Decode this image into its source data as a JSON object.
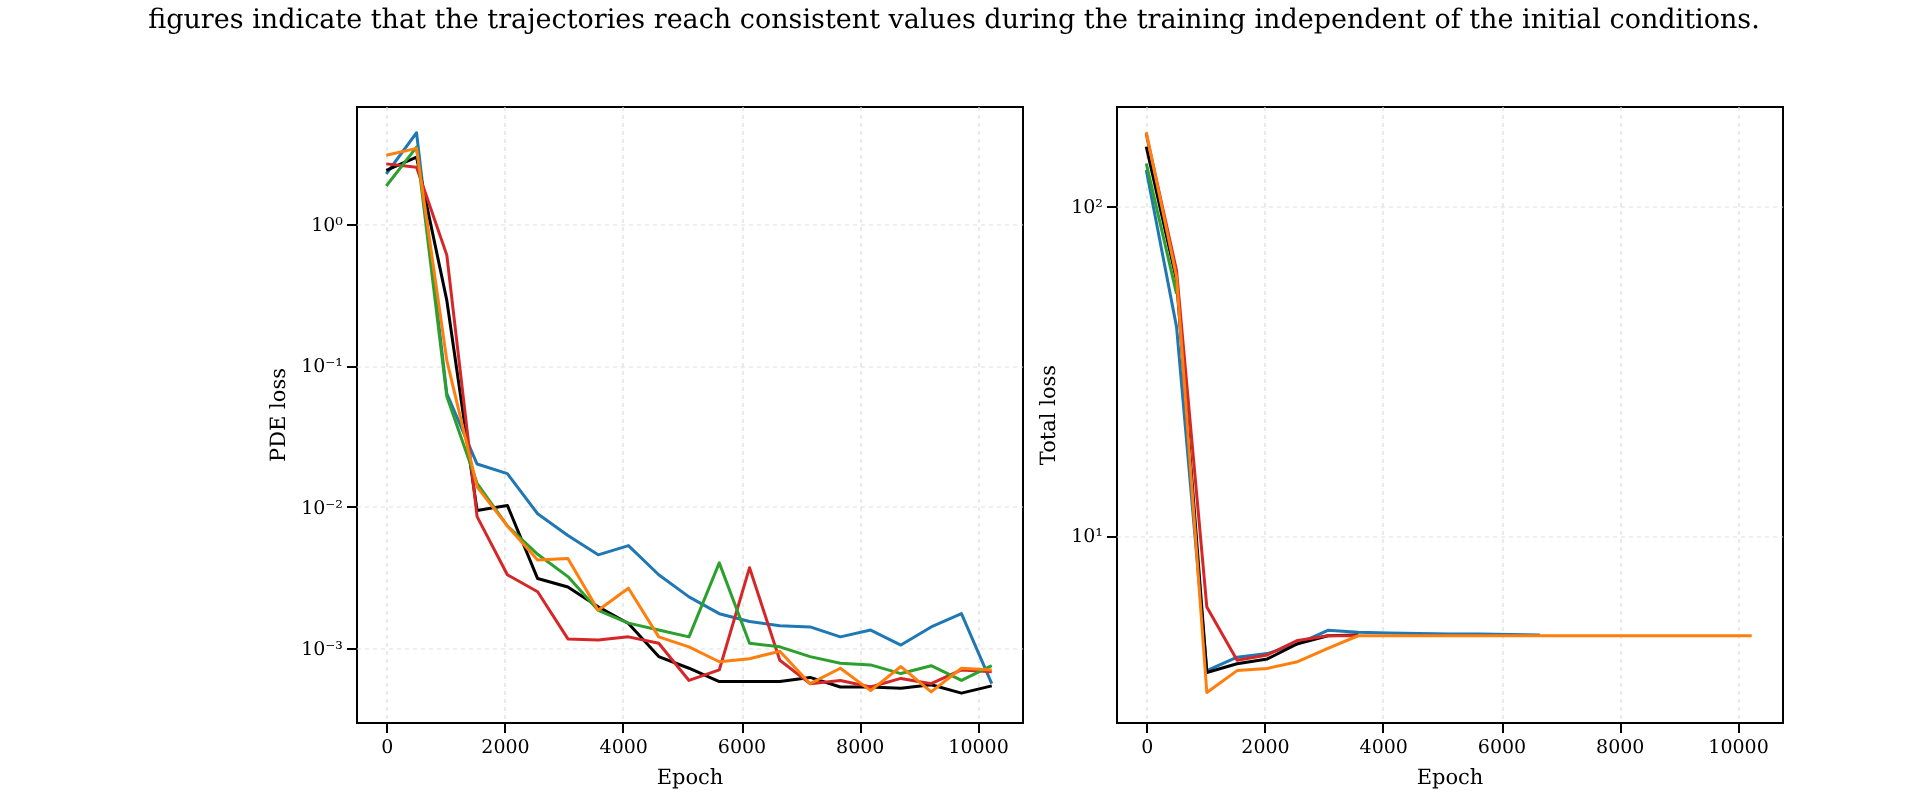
{
  "chart_data": [
    {
      "type": "line",
      "xlabel": "Epoch",
      "ylabel": "PDE loss",
      "log": "y",
      "grid": true,
      "annotations": [
        "figures indicate that the trajectories reach consistent values during the training independent of the initial conditions."
      ],
      "x": [
        0,
        512,
        1024,
        1536,
        2048,
        2560,
        3072,
        3584,
        4096,
        4608,
        5120,
        5632,
        6144,
        6656,
        7168,
        7680,
        8192,
        8704,
        9216,
        9728,
        10240
      ],
      "xlim": [
        -512,
        10752
      ],
      "xticks": [
        0,
        2000,
        4000,
        6000,
        8000,
        10000
      ],
      "ylim": [
        0.0003,
        6.8
      ],
      "yticks": [
        {
          "value": 0.001,
          "label": "10⁻³"
        },
        {
          "value": 0.01,
          "label": "10⁻²"
        },
        {
          "value": 0.1,
          "label": "10⁻¹"
        },
        {
          "value": 1,
          "label": "10⁰"
        }
      ],
      "series": [
        {
          "color": "#1f77b4",
          "values": [
            2.25,
            4.4,
            0.063,
            0.02,
            0.0171,
            0.0089,
            0.00625,
            0.00456,
            0.0053,
            0.0033,
            0.0023,
            0.00175,
            0.00154,
            0.00144,
            0.00141,
            0.0012,
            0.00134,
            0.00105,
            0.00141,
            0.00175,
            0.00056
          ]
        },
        {
          "color": "#000000",
          "values": [
            2.38,
            2.96,
            0.287,
            0.0094,
            0.0102,
            0.0031,
            0.0027,
            0.00196,
            0.00149,
            0.00087,
            0.00072,
            0.00058,
            0.00058,
            0.00058,
            0.00062,
            0.00053,
            0.00053,
            0.00052,
            0.00055,
            0.00048,
            0.00054
          ]
        },
        {
          "color": "#d62728",
          "values": [
            2.65,
            2.51,
            0.6,
            0.0085,
            0.0033,
            0.0025,
            0.00116,
            0.00114,
            0.0012,
            0.00108,
            0.00059,
            0.0007,
            0.0037,
            0.00082,
            0.00056,
            0.00059,
            0.00053,
            0.00061,
            0.00056,
            0.0007,
            0.00068
          ]
        },
        {
          "color": "#2ca02c",
          "values": [
            1.85,
            3.48,
            0.06,
            0.0146,
            0.0073,
            0.0046,
            0.0032,
            0.00185,
            0.0015,
            0.00134,
            0.0012,
            0.004,
            0.00108,
            0.00102,
            0.00087,
            0.00078,
            0.00076,
            0.00066,
            0.00075,
            0.00059,
            0.00075
          ]
        },
        {
          "color": "#ff7f0e",
          "values": [
            3.05,
            3.41,
            0.108,
            0.0138,
            0.0073,
            0.0042,
            0.0043,
            0.00185,
            0.00265,
            0.0012,
            0.00102,
            0.0008,
            0.00084,
            0.00095,
            0.00056,
            0.00072,
            0.0005,
            0.00074,
            0.00049,
            0.00072,
            0.0007
          ]
        }
      ]
    },
    {
      "type": "line",
      "xlabel": "Epoch",
      "ylabel": "Total loss",
      "log": "y",
      "grid": true,
      "x": [
        0,
        512,
        1024,
        1536,
        2048,
        2560,
        3072,
        3584,
        4096,
        4608,
        5120,
        5632,
        6144,
        6656,
        7168,
        7680,
        8192,
        8704,
        9216,
        9728,
        10240
      ],
      "xlim": [
        -512,
        10752
      ],
      "xticks": [
        0,
        2000,
        4000,
        6000,
        8000,
        10000
      ],
      "ylim": [
        2.7,
        202
      ],
      "yticks": [
        {
          "value": 10,
          "label": "10¹"
        },
        {
          "value": 100,
          "label": "10²"
        }
      ],
      "series": [
        {
          "color": "#1f77b4",
          "values": [
            129,
            43,
            3.87,
            4.25,
            4.36,
            4.67,
            5.13,
            5.06,
            5.04,
            5.02,
            5.0,
            5.0,
            4.98,
            4.97,
            null,
            null,
            null,
            null,
            null,
            null,
            null
          ]
        },
        {
          "color": "#000000",
          "values": [
            152,
            59.6,
            3.82,
            4.06,
            4.2,
            4.67,
            4.94,
            4.97,
            null,
            null,
            null,
            null,
            null,
            null,
            null,
            null,
            null,
            null,
            null,
            null,
            null
          ]
        },
        {
          "color": "#d62728",
          "values": [
            166,
            63.8,
            6.04,
            4.16,
            4.32,
            4.78,
            4.94,
            4.94,
            null,
            null,
            null,
            null,
            null,
            null,
            null,
            null,
            null,
            null,
            null,
            null,
            null
          ]
        },
        {
          "color": "#2ca02c",
          "values": [
            135,
            54.2,
            null,
            null,
            null,
            null,
            null,
            null,
            null,
            null,
            null,
            null,
            null,
            null,
            null,
            null,
            null,
            null,
            null,
            null,
            null
          ]
        },
        {
          "color": "#ff7f0e",
          "values": [
            168,
            61,
            3.32,
            3.87,
            3.93,
            4.12,
            4.52,
            4.94,
            4.94,
            4.94,
            4.94,
            4.94,
            4.94,
            4.94,
            4.94,
            4.94,
            4.94,
            4.94,
            4.94,
            4.94,
            4.94
          ]
        }
      ]
    }
  ]
}
